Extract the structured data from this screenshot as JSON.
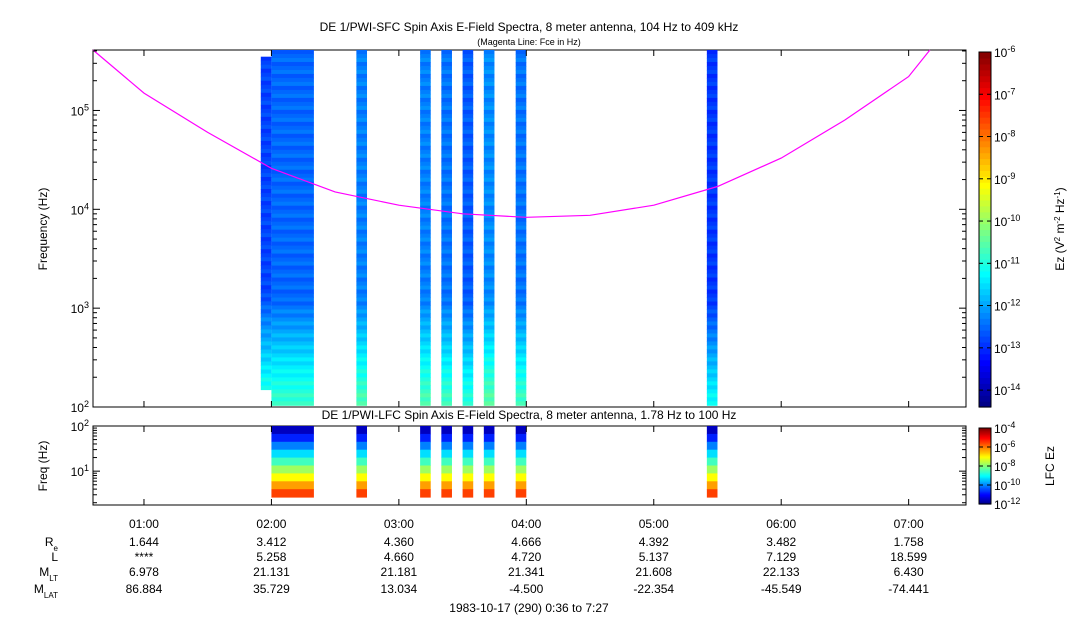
{
  "chart_data": [
    {
      "type": "heatmap",
      "title": "DE 1/PWI-SFC  Spin Axis E-Field Spectra, 8 meter antenna, 104 Hz to 409 kHz",
      "subtitle": "(Magenta Line: Fce in Hz)",
      "ylabel": "Frequency (Hz)",
      "yscale": "log",
      "ylim": [
        100,
        409000
      ],
      "yticks": [
        {
          "exp": 2
        },
        {
          "exp": 3
        },
        {
          "exp": 4
        },
        {
          "exp": 5
        }
      ],
      "colorbar": {
        "label_main": "Ez (V",
        "label_parts": [
          "2",
          " m",
          "-2",
          " Hz",
          "-1",
          ")"
        ],
        "scale": "log",
        "range_exp": [
          -14.4,
          -6
        ],
        "tick_exps": [
          -14,
          -13,
          -12,
          -11,
          -10,
          -9,
          -8,
          -7,
          -6
        ]
      },
      "overlay_line": {
        "name": "Fce",
        "color": "#ff00ff",
        "points": [
          [
            "00:36",
            409000
          ],
          [
            "01:00",
            150000
          ],
          [
            "01:30",
            60000
          ],
          [
            "02:00",
            26000
          ],
          [
            "02:30",
            15000
          ],
          [
            "03:00",
            11000
          ],
          [
            "03:30",
            9000
          ],
          [
            "04:00",
            8300
          ],
          [
            "04:30",
            8700
          ],
          [
            "05:00",
            11000
          ],
          [
            "05:30",
            17000
          ],
          [
            "06:00",
            33000
          ],
          [
            "06:30",
            80000
          ],
          [
            "07:00",
            220000
          ],
          [
            "07:10",
            409000
          ]
        ]
      },
      "data_intervals": [
        {
          "start": "01:55",
          "end": "02:00",
          "fmin": 150,
          "fmax": 350000,
          "level_exp": -12.8
        },
        {
          "start": "02:00",
          "end": "02:20",
          "fmin": 104,
          "fmax": 409000,
          "level_exp": -12.5
        },
        {
          "start": "02:40",
          "end": "02:45",
          "fmin": 104,
          "fmax": 409000,
          "level_exp": -12.3
        },
        {
          "start": "03:10",
          "end": "03:15",
          "fmin": 104,
          "fmax": 409000,
          "level_exp": -12.3
        },
        {
          "start": "03:20",
          "end": "03:25",
          "fmin": 104,
          "fmax": 409000,
          "level_exp": -12.4
        },
        {
          "start": "03:30",
          "end": "03:35",
          "fmin": 104,
          "fmax": 409000,
          "level_exp": -12.6
        },
        {
          "start": "03:40",
          "end": "03:45",
          "fmin": 104,
          "fmax": 409000,
          "level_exp": -12.2
        },
        {
          "start": "03:55",
          "end": "04:00",
          "fmin": 104,
          "fmax": 409000,
          "level_exp": -12.4
        },
        {
          "start": "05:25",
          "end": "05:30",
          "fmin": 104,
          "fmax": 409000,
          "level_exp": -12.9
        }
      ]
    },
    {
      "type": "heatmap",
      "title": "DE 1/PWI-LFC  Spin Axis E-Field Spectra, 8 meter antenna, 1.78 Hz to 100 Hz",
      "ylabel": "Freq (Hz)",
      "yscale": "log",
      "ylim": [
        1.78,
        100
      ],
      "yticks": [
        {
          "exp": 1
        },
        {
          "exp": 2
        }
      ],
      "colorbar": {
        "label": "LFC Ez",
        "scale": "log",
        "range_exp": [
          -12,
          -4
        ],
        "tick_exps": [
          -12,
          -10,
          -8,
          -6,
          -4
        ]
      },
      "data_intervals": [
        {
          "start": "02:00",
          "end": "02:20",
          "level_exp": -8
        },
        {
          "start": "02:40",
          "end": "02:45",
          "level_exp": -8
        },
        {
          "start": "03:10",
          "end": "03:15",
          "level_exp": -8
        },
        {
          "start": "03:20",
          "end": "03:25",
          "level_exp": -8
        },
        {
          "start": "03:30",
          "end": "03:35",
          "level_exp": -8
        },
        {
          "start": "03:40",
          "end": "03:45",
          "level_exp": -8
        },
        {
          "start": "03:55",
          "end": "04:00",
          "level_exp": -8
        },
        {
          "start": "05:25",
          "end": "05:30",
          "level_exp": -8
        }
      ]
    }
  ],
  "time_axis": {
    "range": [
      "00:36",
      "07:27"
    ],
    "major_ticks": [
      "01:00",
      "02:00",
      "03:00",
      "04:00",
      "05:00",
      "06:00",
      "07:00"
    ],
    "footer": "1983-10-17 (290) 0:36 to 7:27"
  },
  "ephemeris": {
    "rows": [
      {
        "label_main": "R",
        "label_sub": "e",
        "values": [
          "1.644",
          "3.412",
          "4.360",
          "4.666",
          "4.392",
          "3.482",
          "1.758"
        ]
      },
      {
        "label_main": "L",
        "label_sub": "",
        "values": [
          "****",
          "5.258",
          "4.660",
          "4.720",
          "5.137",
          "7.129",
          "18.599"
        ]
      },
      {
        "label_main": "M",
        "label_sub": "LT",
        "values": [
          "6.978",
          "21.131",
          "21.181",
          "21.341",
          "21.608",
          "22.133",
          "6.430"
        ]
      },
      {
        "label_main": "M",
        "label_sub": "LAT",
        "values": [
          "86.884",
          "35.729",
          "13.034",
          "-4.500",
          "-22.354",
          "-45.549",
          "-74.441"
        ]
      }
    ]
  }
}
